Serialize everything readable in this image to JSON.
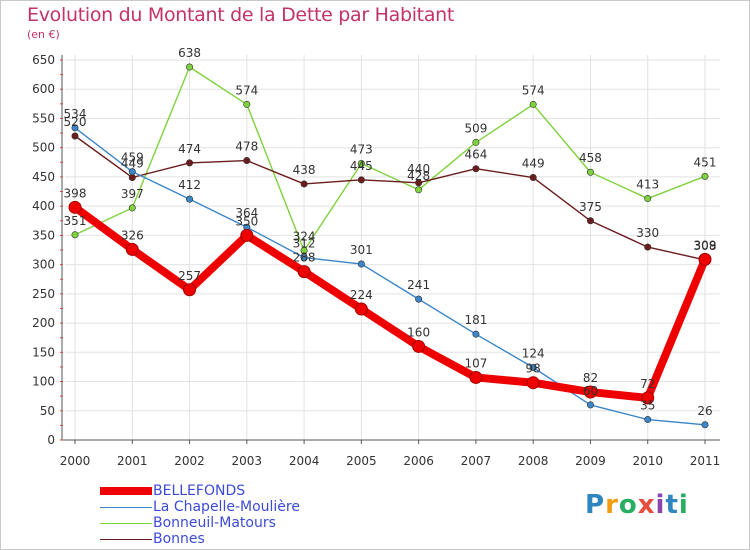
{
  "title": "Evolution du Montant de la Dette par Habitant",
  "unit_label": "(en €)",
  "brand": {
    "letters": [
      "P",
      "r",
      "o",
      "x",
      "i",
      "t",
      "i"
    ],
    "colors": [
      "#2e86c1",
      "#f39c12",
      "#27ae60",
      "#e74c3c",
      "#8e44ad",
      "#2e86c1",
      "#27ae60"
    ]
  },
  "chart_data": {
    "type": "line",
    "categories": [
      "2000",
      "2001",
      "2002",
      "2003",
      "2004",
      "2005",
      "2006",
      "2007",
      "2008",
      "2009",
      "2010",
      "2011"
    ],
    "ylim": [
      0,
      650
    ],
    "yticks": [
      "0",
      "50",
      "100",
      "150",
      "200",
      "250",
      "300",
      "350",
      "400",
      "450",
      "500",
      "550",
      "600",
      "650"
    ],
    "grid": true,
    "legend_position": "bottom-left",
    "series": [
      {
        "name": "BELLEFONDS",
        "color": "#ee0000",
        "values": [
          398,
          326,
          257,
          350,
          288,
          224,
          160,
          107,
          98,
          82,
          72,
          309
        ],
        "labels": [
          "398",
          "326",
          "257",
          "350",
          "288",
          "224",
          "160",
          "107",
          "98",
          "82",
          "72",
          "309"
        ]
      },
      {
        "name": "La Chapelle-Moulière",
        "color": "#3a86c8",
        "values": [
          534,
          459,
          412,
          364,
          312,
          301,
          241,
          181,
          124,
          60,
          35,
          26
        ],
        "labels": [
          "534",
          "459",
          "412",
          "364",
          "312",
          "301",
          "241",
          "181",
          "124",
          "60",
          "35",
          "26"
        ]
      },
      {
        "name": "Bonneuil-Matours",
        "color": "#7ed23c",
        "values": [
          351,
          397,
          638,
          574,
          324,
          473,
          428,
          509,
          574,
          458,
          413,
          451
        ],
        "labels": [
          "351",
          "397",
          "638",
          "574",
          "324",
          "473",
          "428",
          "509",
          "574",
          "458",
          "413",
          "451"
        ]
      },
      {
        "name": "Bonnes",
        "color": "#6b1d1d",
        "values": [
          520,
          449,
          474,
          478,
          438,
          445,
          440,
          464,
          449,
          375,
          330,
          308
        ],
        "labels": [
          "520",
          "449",
          "474",
          "478",
          "438",
          "445",
          "440",
          "464",
          "449",
          "375",
          "330",
          "308"
        ]
      }
    ]
  }
}
